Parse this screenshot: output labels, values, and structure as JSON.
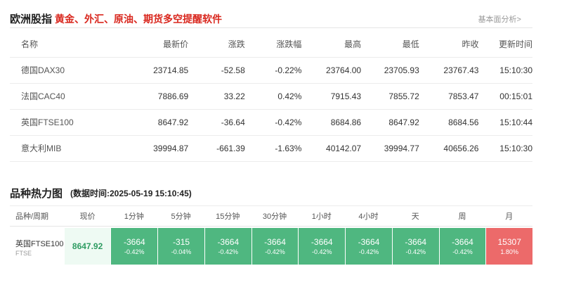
{
  "section1": {
    "title": "欧洲股指",
    "subtitle": "黄金、外汇、原油、期货多空提醒软件",
    "link": "基本面分析>",
    "columns": [
      "名称",
      "最新价",
      "涨跌",
      "涨跌幅",
      "最高",
      "最低",
      "昨收",
      "更新时间"
    ],
    "rows": [
      {
        "name": "德国DAX30",
        "price": "23714.85",
        "change": "-52.58",
        "pct": "-0.22%",
        "high": "23764.00",
        "low": "23705.93",
        "prev": "23767.43",
        "time": "15:10:30",
        "dir": "down"
      },
      {
        "name": "法国CAC40",
        "price": "7886.69",
        "change": "33.22",
        "pct": "0.42%",
        "high": "7915.43",
        "low": "7855.72",
        "prev": "7853.47",
        "time": "00:15:01",
        "dir": "up"
      },
      {
        "name": "英国FTSE100",
        "price": "8647.92",
        "change": "-36.64",
        "pct": "-0.42%",
        "high": "8684.86",
        "low": "8647.92",
        "prev": "8684.56",
        "time": "15:10:44",
        "dir": "down"
      },
      {
        "name": "意大利MIB",
        "price": "39994.87",
        "change": "-661.39",
        "pct": "-1.63%",
        "high": "40142.07",
        "low": "39994.77",
        "prev": "40656.26",
        "time": "15:10:30",
        "dir": "down"
      }
    ]
  },
  "section2": {
    "title": "品种热力图",
    "timestamp": "(数据时间:2025-05-19 15:10:45)",
    "columns": [
      "品种/周期",
      "现价",
      "1分钟",
      "5分钟",
      "15分钟",
      "30分钟",
      "1小时",
      "4小时",
      "天",
      "周",
      "月"
    ],
    "row": {
      "name": "英国FTSE100",
      "code": "FTSE",
      "price": "8647.92",
      "cells": [
        {
          "value": "-3664",
          "pct": "-0.42%",
          "dir": "down"
        },
        {
          "value": "-315",
          "pct": "-0.04%",
          "dir": "down"
        },
        {
          "value": "-3664",
          "pct": "-0.42%",
          "dir": "down"
        },
        {
          "value": "-3664",
          "pct": "-0.42%",
          "dir": "down"
        },
        {
          "value": "-3664",
          "pct": "-0.42%",
          "dir": "down"
        },
        {
          "value": "-3664",
          "pct": "-0.42%",
          "dir": "down"
        },
        {
          "value": "-3664",
          "pct": "-0.42%",
          "dir": "down"
        },
        {
          "value": "-3664",
          "pct": "-0.42%",
          "dir": "down"
        },
        {
          "value": "15307",
          "pct": "1.80%",
          "dir": "up"
        }
      ]
    }
  },
  "colors": {
    "up": "#e4393c",
    "down": "#3b9e6a",
    "heat_down": "#4fb780",
    "heat_up": "#ec6a6a",
    "accent": "#d9271e"
  }
}
